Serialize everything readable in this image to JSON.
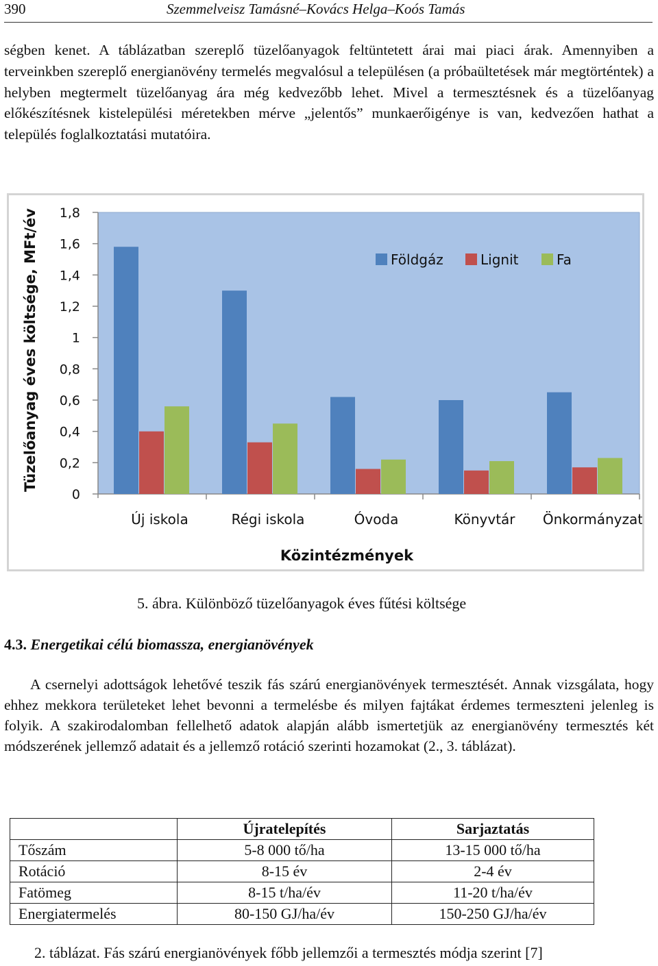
{
  "header": {
    "page_number": "390",
    "authors": "Szemmelveisz Tamásné–Kovács Helga–Koós Tamás"
  },
  "paragraph1": "ségben kenet. A táblázatban szereplő tüzelőanyagok feltüntetett árai mai piaci árak. Amennyiben a terveinkben szereplő energianövény termelés megvalósul a településen (a próbaültetések már megtörténtek) a helyben megtermelt tüzelőanyag ára még kedvezőbb lehet. Mivel a termesztésnek és a tüzelőanyag előkészítésnek kistelepülési méretekben mérve „jelentős” munkaerőigénye is van, kedvezően hathat a település foglalkoztatási mutatóira.",
  "chart_data": {
    "type": "bar",
    "categories": [
      "Új iskola",
      "Régi iskola",
      "Óvoda",
      "Könyvtár",
      "Önkormányzat"
    ],
    "series": [
      {
        "name": "Földgáz",
        "color": "#4f81bd",
        "values": [
          1.58,
          1.3,
          0.62,
          0.6,
          0.65
        ]
      },
      {
        "name": "Lignit",
        "color": "#c0504d",
        "values": [
          0.4,
          0.33,
          0.16,
          0.15,
          0.17
        ]
      },
      {
        "name": "Fa",
        "color": "#9bbb59",
        "values": [
          0.56,
          0.45,
          0.22,
          0.21,
          0.23
        ]
      }
    ],
    "yticks": [
      "0",
      "0,2",
      "0,4",
      "0,6",
      "0,8",
      "1",
      "1,2",
      "1,4",
      "1,6",
      "1,8"
    ],
    "ylim": [
      0,
      1.8
    ],
    "xlabel": "Közintézmények",
    "ylabel": "Tüzelőanyag éves költsége, MFt/év",
    "legend_position": "top-right",
    "plot_background": "#a9c3e6",
    "grid": false
  },
  "figure_caption": "5. ábra. Különböző tüzelőanyagok éves fűtési költsége",
  "section": {
    "number": "4.3.",
    "title": "Energetikai célú biomassza, energianövények"
  },
  "paragraph2": "A csernelyi adottságok lehetővé teszik fás szárú energianövények termesztését. Annak vizsgálata, hogy ehhez mekkora területeket lehet bevonni a termelésbe és milyen fajtákat érdemes termeszteni jelenleg is folyik. A szakirodalomban fellelhető adatok alapján alább ismertetjük az energianövény termesztés két módszerének jellemző adatait és a jellemző rotáció szerinti hozamokat (2., 3. táblázat).",
  "table": {
    "headers": [
      "",
      "Újratelepítés",
      "Sarjaztatás"
    ],
    "rows": [
      [
        "Tőszám",
        "5-8 000 tő/ha",
        "13-15 000 tő/ha"
      ],
      [
        "Rotáció",
        "8-15 év",
        "2-4 év"
      ],
      [
        "Fatömeg",
        "8-15 t/ha/év",
        "11-20 t/ha/év"
      ],
      [
        "Energiatermelés",
        "80-150 GJ/ha/év",
        "150-250 GJ/ha/év"
      ]
    ]
  },
  "table_caption": "2. táblázat. Fás szárú energianövények főbb jellemzői a termesztés módja szerint [7]"
}
